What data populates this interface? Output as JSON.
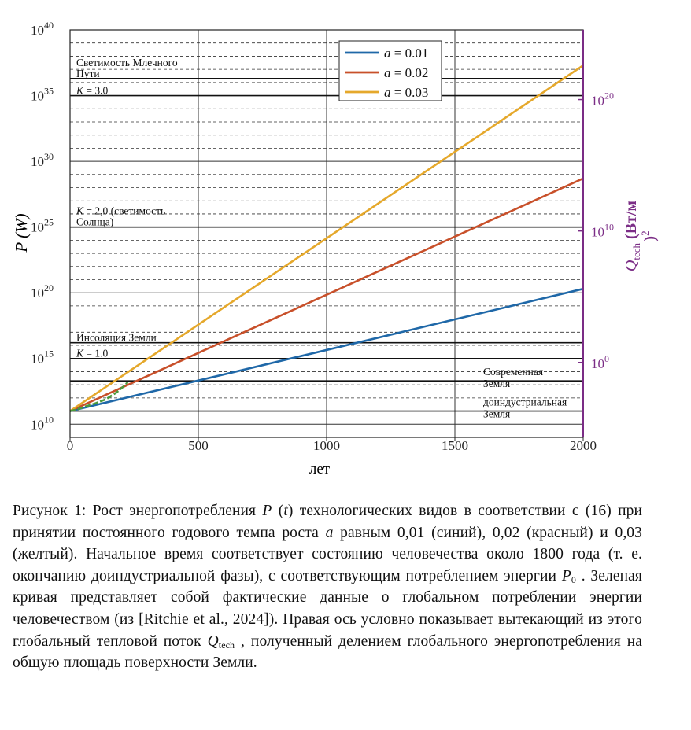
{
  "chart_data": {
    "type": "line",
    "xlabel": "лет",
    "ylabel": "P (W)",
    "y2label_main": "Q",
    "y2label_sub": "tech",
    "y2label_unit": " (Вт/м",
    "y2label_unit_end": ")",
    "y2label_power": "2",
    "xlim": [
      0,
      2000
    ],
    "ylim_log10": [
      9,
      40
    ],
    "x_ticks": [
      0,
      500,
      1000,
      1500,
      2000
    ],
    "y_ticks": [
      {
        "exp": 10,
        "base": "10",
        "sup": "10"
      },
      {
        "exp": 15,
        "base": "10",
        "sup": "15"
      },
      {
        "exp": 20,
        "base": "10",
        "sup": "20"
      },
      {
        "exp": 25,
        "base": "10",
        "sup": "25"
      },
      {
        "exp": 30,
        "base": "10",
        "sup": "30"
      },
      {
        "exp": 35,
        "base": "10",
        "sup": "35"
      },
      {
        "exp": 40,
        "base": "10",
        "sup": "40"
      }
    ],
    "y2_ticks": [
      {
        "exp_left": 14.7,
        "base": "10",
        "sup": "0"
      },
      {
        "exp_left": 24.7,
        "base": "10",
        "sup": "10"
      },
      {
        "exp_left": 34.7,
        "base": "10",
        "sup": "20"
      }
    ],
    "series": [
      {
        "name": "a = 0.01",
        "legend_prefix": "a",
        "legend_value": " = 0.01",
        "color": "#1f68a8",
        "x": [
          0,
          2000
        ],
        "log10_P": [
          11.0,
          20.3
        ]
      },
      {
        "name": "a = 0.02",
        "legend_prefix": "a",
        "legend_value": " = 0.02",
        "color": "#c8502a",
        "x": [
          0,
          2000
        ],
        "log10_P": [
          11.0,
          28.7
        ]
      },
      {
        "name": "a = 0.03",
        "legend_prefix": "a",
        "legend_value": " = 0.03",
        "color": "#e5a82b",
        "x": [
          0,
          2000
        ],
        "log10_P": [
          11.0,
          37.3
        ]
      }
    ],
    "observed": {
      "name": "Ritchie et al., 2024",
      "color": "#4c9a3c",
      "x": [
        0,
        30,
        60,
        100,
        140,
        180,
        210,
        225
      ],
      "log10_P": [
        11.0,
        11.15,
        11.35,
        11.6,
        11.9,
        12.4,
        12.9,
        13.2
      ]
    },
    "reference_lines": [
      {
        "log10_P": 36.3,
        "label_lines": [
          "Светимость Млечного",
          "Пути"
        ],
        "label_pos": "left"
      },
      {
        "log10_P": 35.0,
        "label_lines": [
          "K = 3.0"
        ],
        "label_pos": "left",
        "struck": true
      },
      {
        "log10_P": 25.0,
        "label_lines": [
          "K = 2,0 (светимость",
          "Солнца)"
        ],
        "label_pos": "left"
      },
      {
        "log10_P": 16.2,
        "label_lines": [
          "Инсоляция Земли"
        ],
        "label_pos": "left"
      },
      {
        "log10_P": 15.0,
        "label_lines": [
          "K = 1.0"
        ],
        "label_pos": "left",
        "struck": true
      },
      {
        "log10_P": 13.3,
        "label_lines": [
          "Современная",
          "Земля"
        ],
        "label_pos": "right"
      },
      {
        "log10_P": 11.0,
        "label_lines": [
          "доиндустриальная",
          "Земля"
        ],
        "label_pos": "right"
      }
    ],
    "legend_position": "top-right",
    "grid": true
  },
  "caption": {
    "part1": "Рисунок 1: Рост энергопотребления ",
    "P": "P",
    "part2": " (",
    "t": "t",
    "part3": ") технологических видов в соответствии с (16) при принятии постоянного годового темпа роста ",
    "a": "a",
    "part4": " равным 0,01 (синий), 0,02 (красный) и 0,03 (желтый). Начальное время соответствует состоянию человечества около 1800 года (т. е. окончанию доиндустриальной фазы), с соответствующим потреблением энергии ",
    "P0": "P",
    "P0_sub": "0",
    "part5": " . Зеленая кривая представляет собой фактические данные о глобальном потреблении энергии человечеством (из [Ritchie et al., 2024]). Правая ось условно показывает вытекающий из этого глобальный тепловой поток ",
    "Q": "Q",
    "Q_sub": "tech",
    "part6": " , полученный делением глобального энергопотребления на общую площадь поверхности Земли."
  }
}
